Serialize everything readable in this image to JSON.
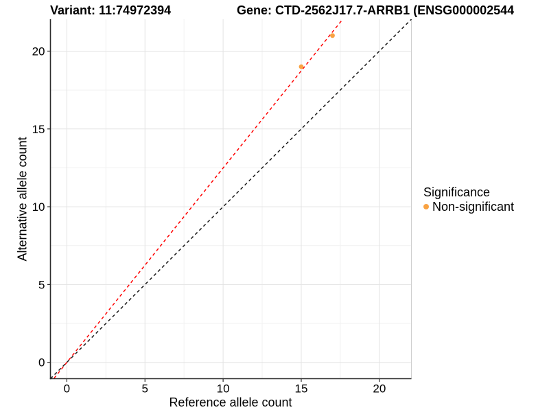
{
  "header": {
    "variant_title": "Variant: 11:74972394",
    "gene_title": "Gene: CTD-2562J17.7-ARRB1 (ENSG000002544"
  },
  "chart_data": {
    "type": "scatter",
    "xlabel": "Reference allele count",
    "ylabel": "Alternative allele count",
    "xlim": [
      -1.05,
      22.05
    ],
    "ylim": [
      -1.05,
      22.05
    ],
    "xticks": [
      0,
      5,
      10,
      15,
      20
    ],
    "yticks": [
      0,
      5,
      10,
      15,
      20
    ],
    "minor_ticks": [
      2.5,
      7.5,
      12.5,
      17.5
    ],
    "grid": true,
    "series": [
      {
        "name": "Non-significant",
        "color": "#F9A242",
        "points": [
          [
            15,
            19
          ],
          [
            17,
            21
          ]
        ]
      }
    ],
    "lines": [
      {
        "name": "identity-line",
        "slope": 1.0,
        "intercept": 0,
        "color": "#1a1a1a",
        "dashed": true
      },
      {
        "name": "fit-line",
        "slope": 1.249,
        "intercept": 0,
        "color": "#FF0000",
        "dashed": true
      }
    ],
    "legend": {
      "position": "right",
      "title": "Significance",
      "items": [
        {
          "label": "Non-significant",
          "color": "#F9A242"
        }
      ]
    }
  }
}
